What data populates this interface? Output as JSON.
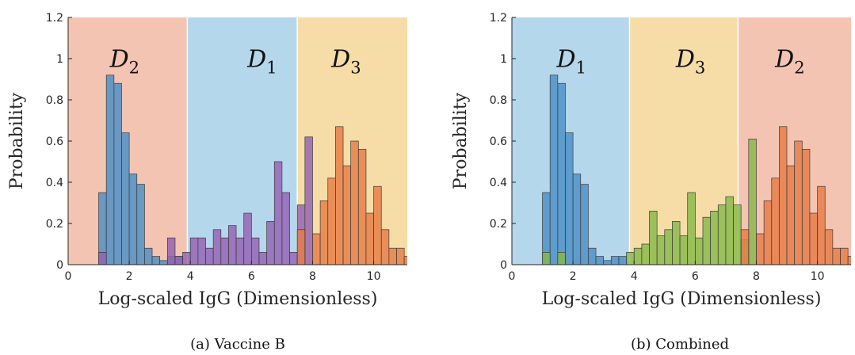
{
  "chart_data": [
    {
      "type": "bar",
      "caption": "(a) Vaccine B",
      "xlabel": "Log-scaled IgG (Dimensionless)",
      "ylabel": "Probability",
      "xlim": [
        0,
        11.1
      ],
      "ylim": [
        0,
        1.2
      ],
      "xticks": [
        "0",
        "2",
        "4",
        "6",
        "8",
        "10"
      ],
      "yticks": [
        "0",
        "0.2",
        "0.4",
        "0.6",
        "0.8",
        "1",
        "1.2"
      ],
      "bin_width": 0.25,
      "grid": false,
      "regions": [
        {
          "label": "D",
          "sub": "2",
          "x0": 0,
          "x1": 3.9,
          "color": "#f4c4b2",
          "label_x": 1.85
        },
        {
          "label": "D",
          "sub": "1",
          "x0": 3.9,
          "x1": 7.5,
          "color": "#b5d7ec",
          "label_x": 6.35
        },
        {
          "label": "D",
          "sub": "3",
          "x0": 7.5,
          "x1": 11.1,
          "color": "#f6dca7",
          "label_x": 9.1
        }
      ],
      "series": [
        {
          "color": "#4a8fc6",
          "bins": [
            [
              1.0,
              0.35
            ],
            [
              1.25,
              0.92
            ],
            [
              1.5,
              0.88
            ],
            [
              1.75,
              0.64
            ],
            [
              2.0,
              0.44
            ],
            [
              2.25,
              0.39
            ],
            [
              2.5,
              0.08
            ],
            [
              2.75,
              0.04
            ],
            [
              3.0,
              0.02
            ],
            [
              3.25,
              0.04
            ],
            [
              3.5,
              0.04
            ]
          ]
        },
        {
          "color": "#9462b3",
          "bins": [
            [
              1.0,
              0.06
            ],
            [
              3.25,
              0.13
            ],
            [
              3.5,
              0.04
            ],
            [
              3.75,
              0.06
            ],
            [
              4.0,
              0.13
            ],
            [
              4.25,
              0.13
            ],
            [
              4.5,
              0.08
            ],
            [
              4.75,
              0.17
            ],
            [
              5.0,
              0.13
            ],
            [
              5.25,
              0.19
            ],
            [
              5.5,
              0.13
            ],
            [
              5.75,
              0.25
            ],
            [
              6.0,
              0.13
            ],
            [
              6.25,
              0.06
            ],
            [
              6.5,
              0.21
            ],
            [
              6.75,
              0.5
            ],
            [
              7.0,
              0.35
            ],
            [
              7.25,
              0.06
            ],
            [
              7.5,
              0.29
            ],
            [
              7.75,
              0.62
            ]
          ]
        },
        {
          "color": "#e67d47",
          "bins": [
            [
              7.5,
              0.17
            ],
            [
              8.0,
              0.15
            ],
            [
              8.25,
              0.31
            ],
            [
              8.5,
              0.42
            ],
            [
              8.75,
              0.67
            ],
            [
              9.0,
              0.48
            ],
            [
              9.25,
              0.6
            ],
            [
              9.5,
              0.56
            ],
            [
              9.75,
              0.25
            ],
            [
              10.0,
              0.38
            ],
            [
              10.25,
              0.17
            ],
            [
              10.5,
              0.08
            ],
            [
              10.75,
              0.08
            ],
            [
              11.0,
              0.04
            ]
          ]
        }
      ]
    },
    {
      "type": "bar",
      "caption": "(b) Combined",
      "xlabel": "Log-scaled IgG (Dimensionless)",
      "ylabel": "Probability",
      "xlim": [
        0,
        11.1
      ],
      "ylim": [
        0,
        1.2
      ],
      "xticks": [
        "0",
        "2",
        "4",
        "6",
        "8",
        "10"
      ],
      "yticks": [
        "0",
        "0.2",
        "0.4",
        "0.6",
        "0.8",
        "1",
        "1.2"
      ],
      "bin_width": 0.25,
      "grid": false,
      "regions": [
        {
          "label": "D",
          "sub": "1",
          "x0": 0,
          "x1": 3.85,
          "color": "#b5d7ec",
          "label_x": 1.95
        },
        {
          "label": "D",
          "sub": "3",
          "x0": 3.85,
          "x1": 7.4,
          "color": "#f6dca7",
          "label_x": 5.85
        },
        {
          "label": "D",
          "sub": "2",
          "x0": 7.4,
          "x1": 11.1,
          "color": "#f4c4b2",
          "label_x": 9.1
        }
      ],
      "series": [
        {
          "color": "#4a8fc6",
          "bins": [
            [
              1.0,
              0.35
            ],
            [
              1.25,
              0.92
            ],
            [
              1.5,
              0.88
            ],
            [
              1.75,
              0.64
            ],
            [
              2.0,
              0.44
            ],
            [
              2.25,
              0.39
            ],
            [
              2.5,
              0.08
            ],
            [
              2.75,
              0.04
            ],
            [
              3.0,
              0.02
            ],
            [
              3.25,
              0.04
            ],
            [
              3.5,
              0.04
            ]
          ]
        },
        {
          "color": "#86b84a",
          "bins": [
            [
              1.0,
              0.06
            ],
            [
              1.5,
              0.06
            ],
            [
              3.75,
              0.06
            ],
            [
              4.0,
              0.08
            ],
            [
              4.25,
              0.1
            ],
            [
              4.5,
              0.26
            ],
            [
              4.75,
              0.14
            ],
            [
              5.0,
              0.17
            ],
            [
              5.25,
              0.21
            ],
            [
              5.5,
              0.14
            ],
            [
              5.75,
              0.35
            ],
            [
              6.0,
              0.13
            ],
            [
              6.25,
              0.23
            ],
            [
              6.5,
              0.26
            ],
            [
              6.75,
              0.29
            ],
            [
              7.0,
              0.33
            ],
            [
              7.25,
              0.29
            ],
            [
              7.5,
              0.12
            ],
            [
              7.75,
              0.61
            ]
          ]
        },
        {
          "color": "#e67d47",
          "bins": [
            [
              7.5,
              0.17
            ],
            [
              8.0,
              0.15
            ],
            [
              8.25,
              0.31
            ],
            [
              8.5,
              0.42
            ],
            [
              8.75,
              0.67
            ],
            [
              9.0,
              0.48
            ],
            [
              9.25,
              0.6
            ],
            [
              9.5,
              0.56
            ],
            [
              9.75,
              0.25
            ],
            [
              10.0,
              0.38
            ],
            [
              10.25,
              0.17
            ],
            [
              10.5,
              0.08
            ],
            [
              10.75,
              0.08
            ],
            [
              11.0,
              0.04
            ]
          ]
        }
      ]
    }
  ]
}
